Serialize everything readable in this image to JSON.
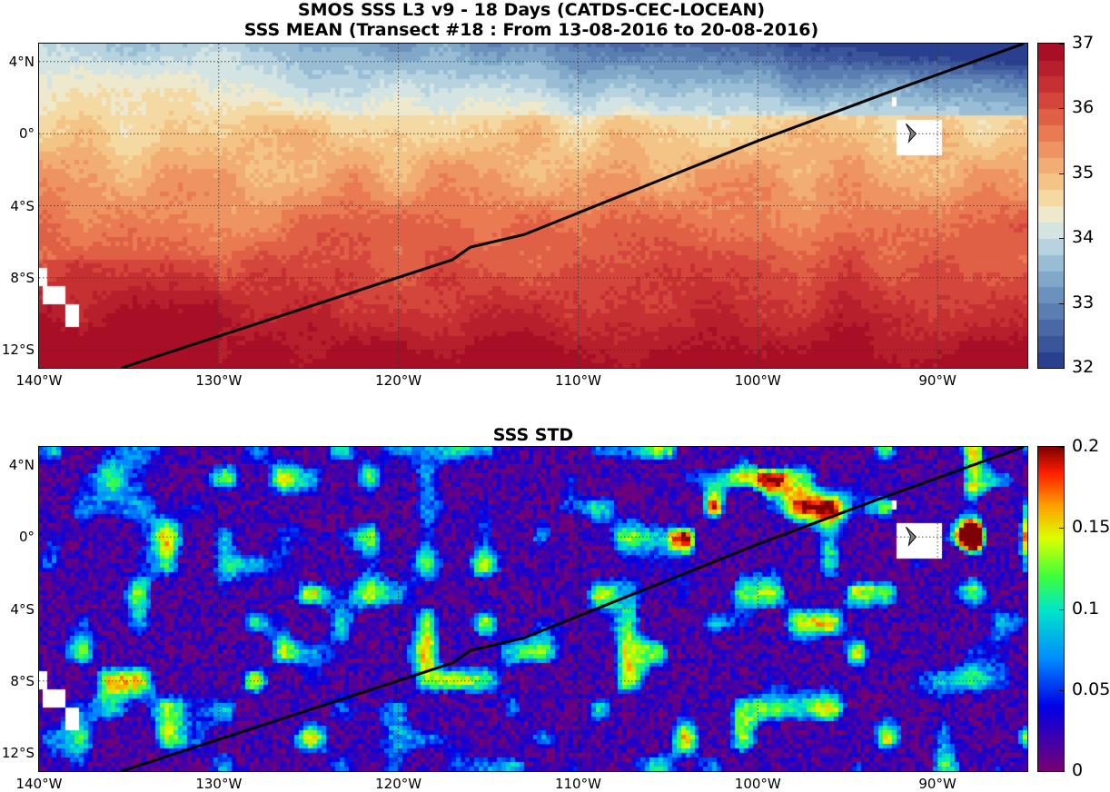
{
  "title": {
    "line1": "SMOS SSS L3 v9 - 18 Days (CATDS-CEC-LOCEAN)",
    "line2": "SSS MEAN (Transect #18 : From 13-08-2016 to 20-08-2016)"
  },
  "std_panel": {
    "title": "SSS STD"
  },
  "map_extent": {
    "lon": [
      -140,
      -85
    ],
    "lat": [
      -13,
      5
    ]
  },
  "lat_ticks": [
    {
      "value": 4,
      "label": "4°N"
    },
    {
      "value": 0,
      "label": "0°"
    },
    {
      "value": -4,
      "label": "4°S"
    },
    {
      "value": -8,
      "label": "8°S"
    },
    {
      "value": -12,
      "label": "12°S"
    }
  ],
  "lon_ticks": [
    {
      "value": -140,
      "label": "140°W"
    },
    {
      "value": -130,
      "label": "130°W"
    },
    {
      "value": -120,
      "label": "120°W"
    },
    {
      "value": -110,
      "label": "110°W"
    },
    {
      "value": -100,
      "label": "100°W"
    },
    {
      "value": -90,
      "label": "90°W"
    }
  ],
  "mean_colorbar": {
    "range": [
      32,
      37
    ],
    "ticks": [
      {
        "value": 37,
        "label": "37"
      },
      {
        "value": 36,
        "label": "36"
      },
      {
        "value": 35,
        "label": "35"
      },
      {
        "value": 34,
        "label": "34"
      },
      {
        "value": 33,
        "label": "33"
      },
      {
        "value": 32,
        "label": "32"
      }
    ]
  },
  "std_colorbar": {
    "range": [
      0,
      0.2
    ],
    "ticks": [
      {
        "value": 0.2,
        "label": "0.2"
      },
      {
        "value": 0.15,
        "label": "0.15"
      },
      {
        "value": 0.1,
        "label": "0.1"
      },
      {
        "value": 0.05,
        "label": "0.05"
      },
      {
        "value": 0,
        "label": "0"
      }
    ]
  },
  "transect": {
    "color": "#000000",
    "points": [
      [
        -135.4,
        -13
      ],
      [
        -117,
        -7
      ],
      [
        -116,
        -6.3
      ],
      [
        -113,
        -5.6
      ],
      [
        -100,
        -0.4
      ],
      [
        -93,
        2.2
      ],
      [
        -85.2,
        5
      ]
    ]
  }
}
